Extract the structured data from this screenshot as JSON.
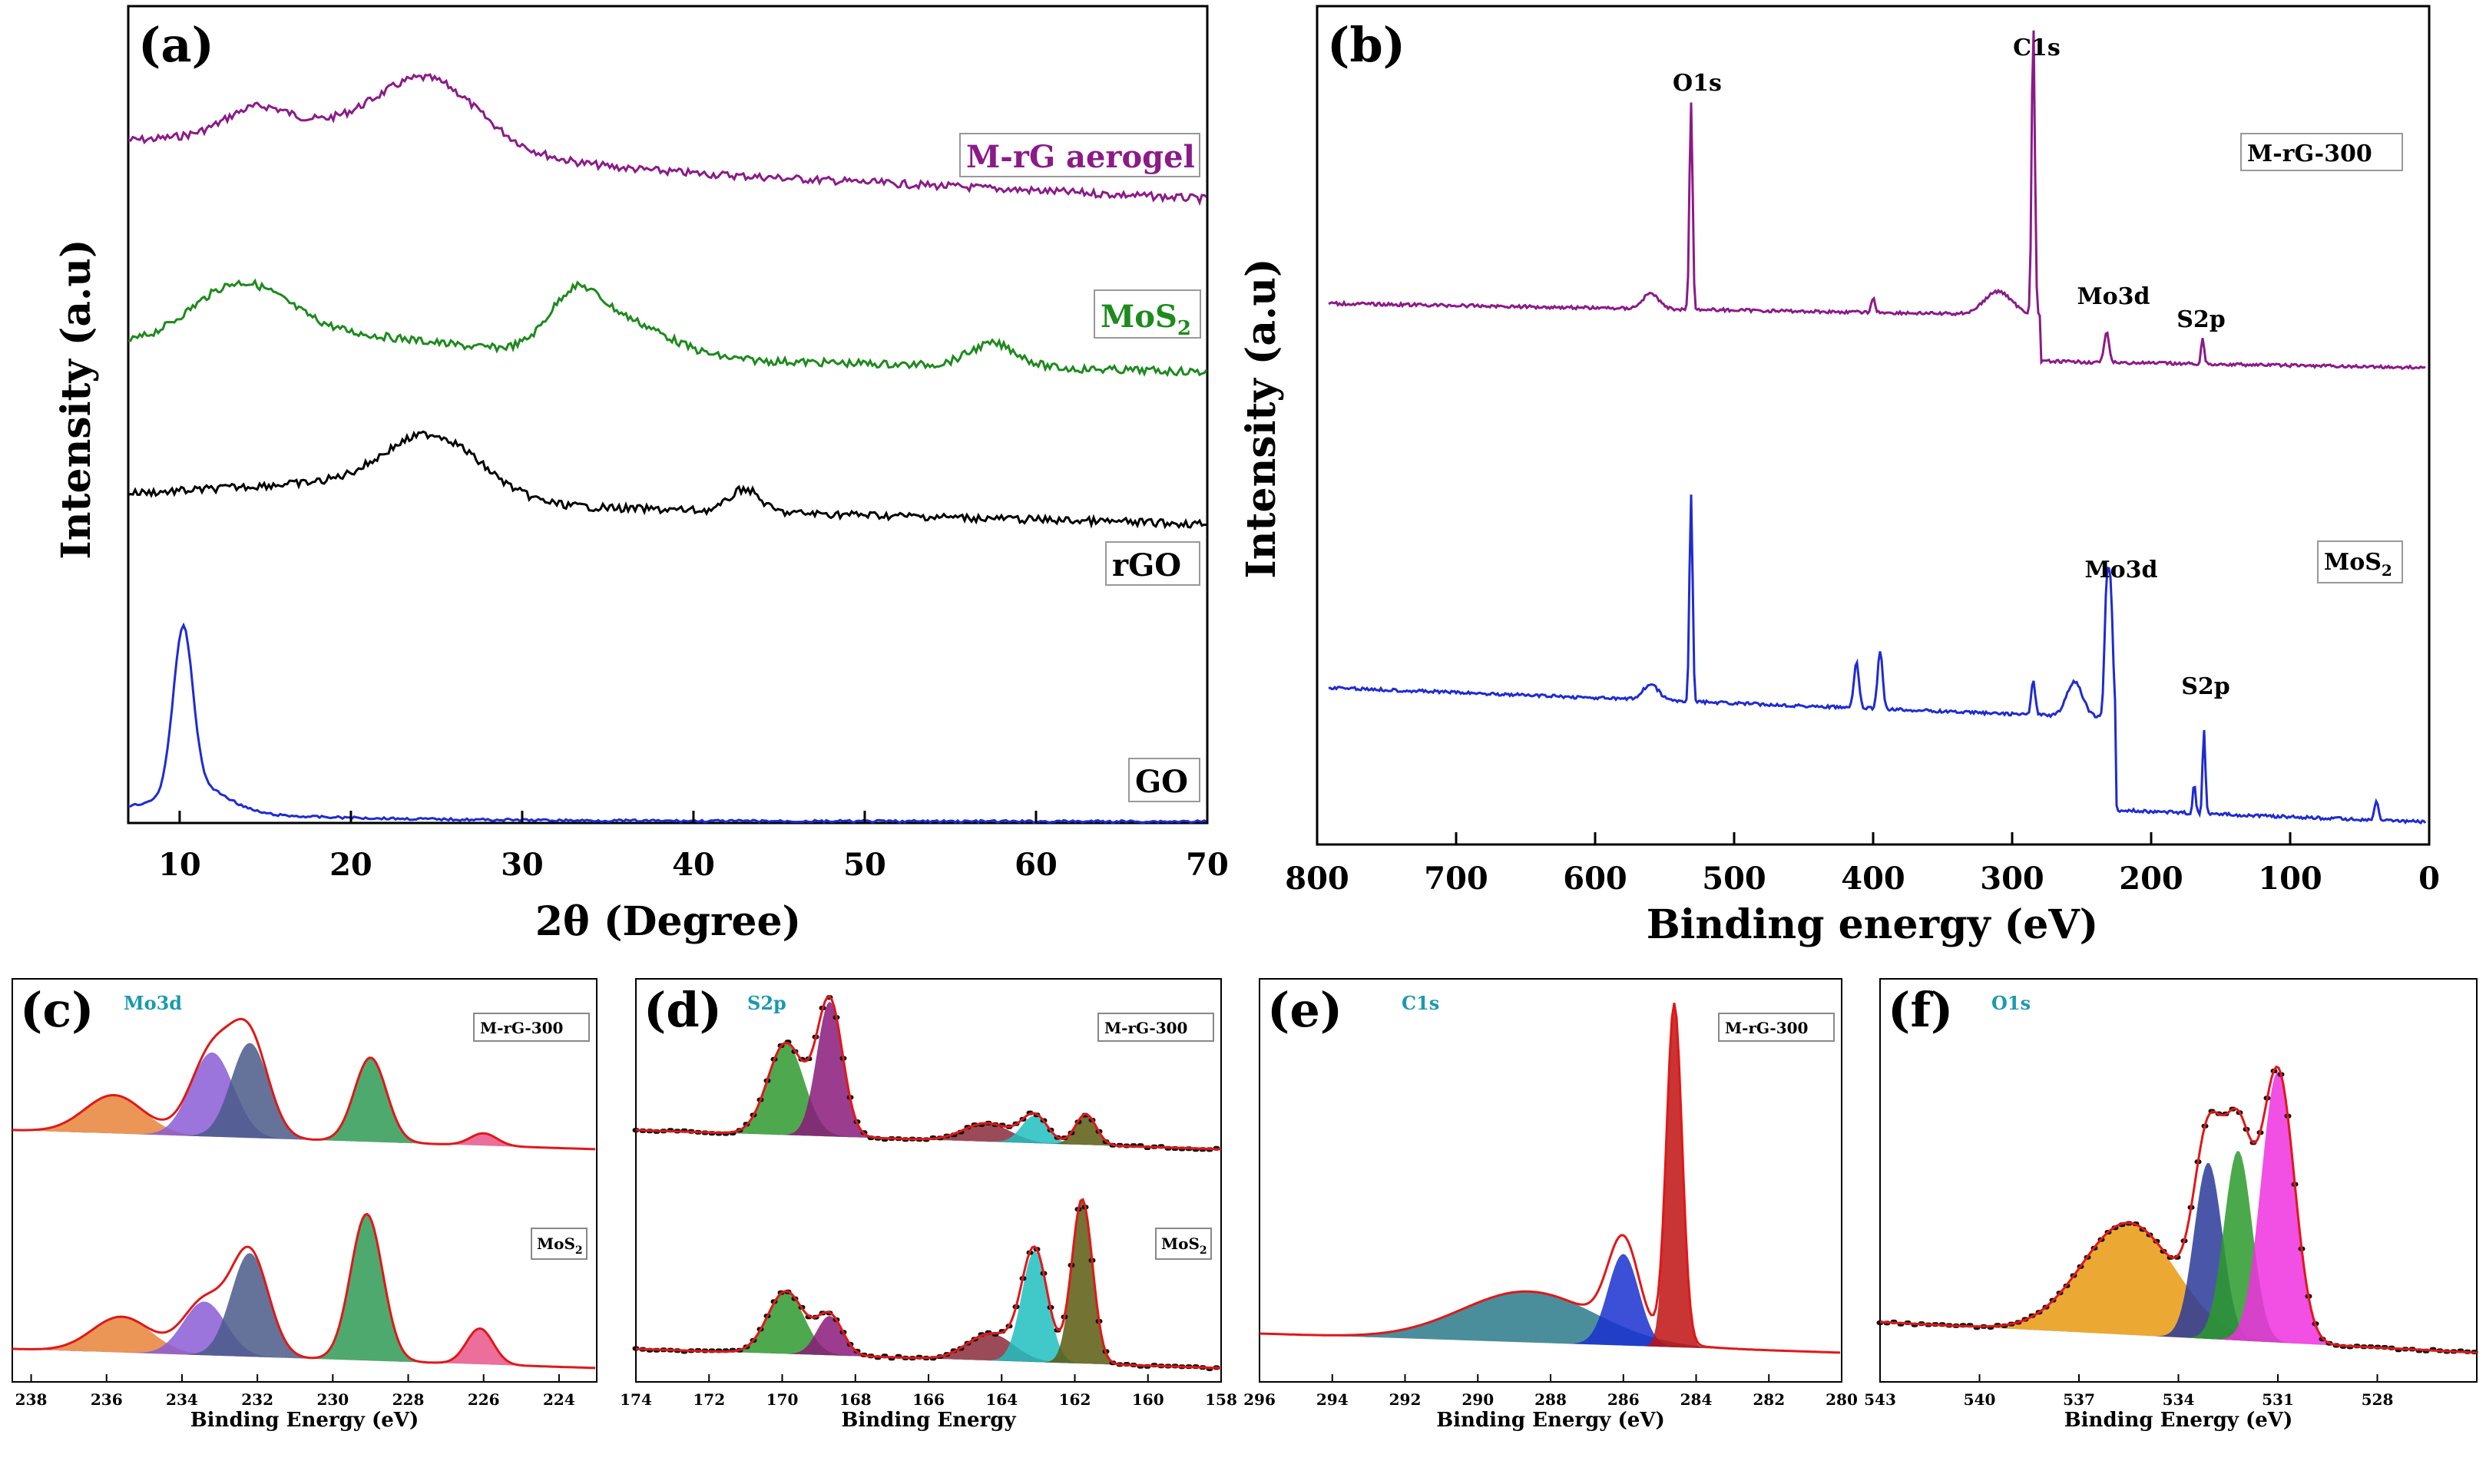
{
  "figure": {
    "a": {
      "label": "(a)",
      "xlabel": "2θ (Degree)",
      "ylabel": "Intensity (a.u)",
      "xticks": [
        "10",
        "20",
        "30",
        "40",
        "50",
        "60",
        "70"
      ],
      "legend": [
        "M-rG aerogel",
        "MoS",
        "2",
        "rGO",
        "GO"
      ]
    },
    "b": {
      "label": "(b)",
      "xlabel": "Binding energy (eV)",
      "ylabel": "Intensity (a.u)",
      "xticks": [
        "800",
        "700",
        "600",
        "500",
        "400",
        "300",
        "200",
        "100",
        "0"
      ],
      "legend": [
        "M-rG-300",
        "MoS",
        "2"
      ],
      "peaks": [
        "O1s",
        "C1s",
        "Mo3d",
        "S2p",
        "Mo3d",
        "S2p"
      ]
    },
    "c": {
      "label": "(c)",
      "title": "Mo3d",
      "xlabel": "Binding Energy (eV)",
      "xticks": [
        "238",
        "236",
        "234",
        "232",
        "230",
        "228",
        "226",
        "224"
      ],
      "legend": [
        "M-rG-300",
        "MoS",
        "2"
      ]
    },
    "d": {
      "label": "(d)",
      "title": "S2p",
      "xlabel": "Binding Energy",
      "xticks": [
        "174",
        "172",
        "170",
        "168",
        "166",
        "164",
        "162",
        "160",
        "158"
      ],
      "legend": [
        "M-rG-300",
        "MoS",
        "2"
      ]
    },
    "e": {
      "label": "(e)",
      "title": "C1s",
      "xlabel": "Binding Energy (eV)",
      "xticks": [
        "296",
        "294",
        "292",
        "290",
        "288",
        "286",
        "284",
        "282",
        "280"
      ],
      "legend": [
        "M-rG-300"
      ]
    },
    "f": {
      "label": "(f)",
      "title": "O1s",
      "xlabel": "Binding Energy (eV)",
      "xticks": [
        "543",
        "540",
        "537",
        "534",
        "531",
        "528"
      ]
    }
  },
  "chart_data": [
    {
      "type": "line",
      "panel": "a",
      "title": "(a)",
      "xlabel": "2θ (Degree)",
      "ylabel": "Intensity (a.u)",
      "xlim": [
        7,
        70
      ],
      "series": [
        {
          "name": "M-rG aerogel",
          "color": "#8b1a89",
          "peaks_2theta": [
            14.5,
            24.6
          ]
        },
        {
          "name": "MoS2",
          "color": "#1d8a1d",
          "peaks_2theta": [
            13.5,
            33,
            35.5,
            57.5
          ]
        },
        {
          "name": "rGO",
          "color": "#000000",
          "peaks_2theta": [
            24.8,
            43
          ]
        },
        {
          "name": "GO",
          "color": "#1f2bd1",
          "peaks_2theta": [
            10.2
          ]
        }
      ]
    },
    {
      "type": "line",
      "panel": "b",
      "title": "(b)",
      "xlabel": "Binding energy (eV)",
      "ylabel": "Intensity (a.u)",
      "xlim": [
        800,
        0
      ],
      "series": [
        {
          "name": "M-rG-300",
          "color": "#8b1a89",
          "peaks_eV": {
            "O1s": 531,
            "C1s": 284.8,
            "Mo3d": 232,
            "S2p": 163
          }
        },
        {
          "name": "MoS2",
          "color": "#1f2bd1",
          "peaks_eV": {
            "O1s": 531,
            "Mo3d": 230,
            "S2p": 162
          }
        }
      ]
    },
    {
      "type": "area",
      "panel": "c",
      "title": "Mo3d",
      "xlabel": "Binding Energy (eV)",
      "xlim": [
        238.5,
        223
      ],
      "series": [
        {
          "name": "M-rG-300",
          "components_eV": [
            235.8,
            233.2,
            232.2,
            229.0,
            226.0
          ]
        },
        {
          "name": "MoS2",
          "components_eV": [
            235.6,
            233.4,
            232.2,
            229.1,
            226.1
          ]
        }
      ]
    },
    {
      "type": "area",
      "panel": "d",
      "title": "S2p",
      "xlabel": "Binding Energy",
      "xlim": [
        174,
        158
      ],
      "series": [
        {
          "name": "M-rG-300",
          "components_eV": [
            169.9,
            168.7,
            164.4,
            163.1,
            161.7
          ]
        },
        {
          "name": "MoS2",
          "components_eV": [
            169.9,
            168.7,
            164.3,
            163.1,
            161.8
          ]
        }
      ]
    },
    {
      "type": "area",
      "panel": "e",
      "title": "C1s",
      "xlabel": "Binding Energy (eV)",
      "xlim": [
        296,
        280
      ],
      "series": [
        {
          "name": "M-rG-300",
          "components_eV": [
            288.6,
            286.0,
            284.6
          ]
        }
      ]
    },
    {
      "type": "area",
      "panel": "f",
      "title": "O1s",
      "xlabel": "Binding Energy (eV)",
      "xlim": [
        543,
        525
      ],
      "series": [
        {
          "name": "O1s",
          "components_eV": [
            535.5,
            533.1,
            532.2,
            531.0
          ]
        }
      ]
    }
  ]
}
